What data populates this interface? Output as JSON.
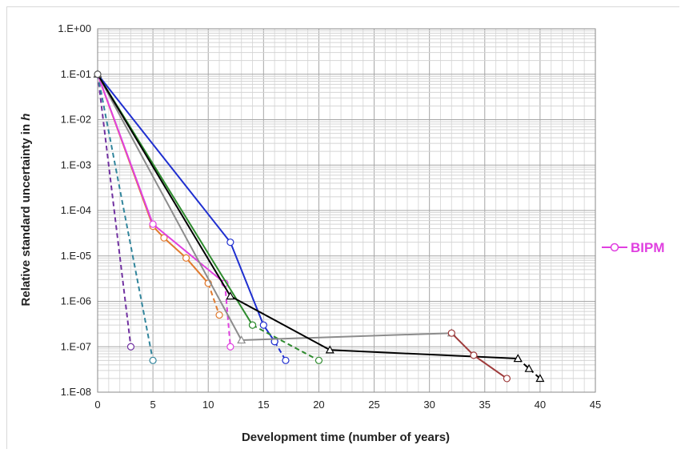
{
  "chart_data": {
    "type": "line",
    "title": "",
    "xlabel": "Development time (number of years)",
    "ylabel": "Relative standard uncertainty in",
    "ylabel_italic": "h",
    "x_scale": "linear",
    "y_scale": "log",
    "xlim": [
      0,
      45
    ],
    "ylim": [
      1e-08,
      1
    ],
    "x_ticks": [
      "0",
      "5",
      "10",
      "15",
      "20",
      "25",
      "30",
      "35",
      "40",
      "45"
    ],
    "y_ticks": [
      "1.E+00",
      "1.E-01",
      "1.E-02",
      "1.E-03",
      "1.E-04",
      "1.E-05",
      "1.E-06",
      "1.E-07",
      "1.E-08"
    ],
    "grid": true,
    "legend_position": "right",
    "legend": [
      {
        "name": "BIPM",
        "color": "#e040e0",
        "marker": "circle"
      }
    ],
    "series": [
      {
        "color": "#7030a0",
        "dashed": true,
        "marker": "circle",
        "points": [
          [
            0,
            0.1
          ],
          [
            3,
            1e-07
          ]
        ]
      },
      {
        "color": "#31859c",
        "dashed": true,
        "marker": "circle",
        "points": [
          [
            0,
            0.1
          ],
          [
            5,
            5e-08
          ]
        ]
      },
      {
        "color": "#e07a2e",
        "dashed": false,
        "marker": "circle",
        "points": [
          [
            0,
            0.1
          ],
          [
            5,
            4.5e-05
          ],
          [
            6,
            2.5e-05
          ],
          [
            8,
            9e-06
          ],
          [
            10,
            2.5e-06
          ]
        ]
      },
      {
        "color": "#e07a2e",
        "dashed": true,
        "marker": "circle",
        "points": [
          [
            10,
            2.5e-06
          ],
          [
            11,
            5e-07
          ]
        ]
      },
      {
        "name": "BIPM",
        "color": "#e040e0",
        "dashed": false,
        "marker": "circle",
        "points": [
          [
            0,
            0.1
          ],
          [
            5,
            5e-05
          ],
          [
            11.5,
            2.5e-06
          ]
        ]
      },
      {
        "color": "#e040e0",
        "dashed": true,
        "marker": "circle",
        "points": [
          [
            11.5,
            2.5e-06
          ],
          [
            12,
            1e-07
          ]
        ]
      },
      {
        "color": "#1f2fd0",
        "dashed": false,
        "marker": "circle",
        "points": [
          [
            0,
            0.1
          ],
          [
            12,
            2e-05
          ],
          [
            15,
            3e-07
          ],
          [
            16,
            1.3e-07
          ]
        ]
      },
      {
        "color": "#1f2fd0",
        "dashed": true,
        "marker": "circle",
        "points": [
          [
            16,
            1.3e-07
          ],
          [
            17,
            5e-08
          ]
        ]
      },
      {
        "color": "#2e8b2e",
        "dashed": false,
        "marker": "circle",
        "points": [
          [
            0,
            0.1
          ],
          [
            14,
            3e-07
          ]
        ]
      },
      {
        "color": "#2e8b2e",
        "dashed": true,
        "marker": "circle",
        "points": [
          [
            14,
            3e-07
          ],
          [
            20,
            5e-08
          ]
        ]
      },
      {
        "color": "#8c8c8c",
        "dashed": false,
        "marker": "triangle",
        "points": [
          [
            0,
            0.1
          ],
          [
            13,
            1.4e-07
          ],
          [
            32,
            2e-07
          ]
        ]
      },
      {
        "color": "#000000",
        "dashed": false,
        "marker": "triangle",
        "points": [
          [
            0,
            0.1
          ],
          [
            12,
            1.3e-06
          ],
          [
            21,
            8.5e-08
          ],
          [
            38,
            5.5e-08
          ]
        ]
      },
      {
        "color": "#000000",
        "dashed": true,
        "marker": "triangle",
        "points": [
          [
            38,
            5.5e-08
          ],
          [
            39,
            3.3e-08
          ],
          [
            40,
            2e-08
          ]
        ]
      },
      {
        "color": "#9e3a3a",
        "dashed": false,
        "marker": "circle",
        "points": [
          [
            32,
            2e-07
          ],
          [
            34,
            6.5e-08
          ],
          [
            37,
            2e-08
          ]
        ]
      }
    ]
  }
}
